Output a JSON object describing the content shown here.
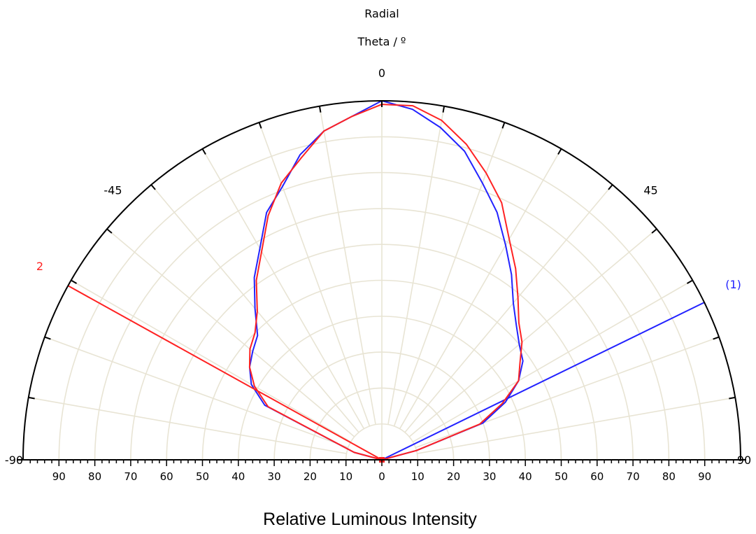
{
  "chart_data": {
    "type": "polar-line",
    "title": "Radial",
    "subtitle": "Theta / º",
    "xlabel": "Relative Luminous Intensity",
    "theta_range": [
      -90,
      90
    ],
    "r_range": [
      0,
      100
    ],
    "theta_ticks": [
      -90,
      -45,
      0,
      45,
      90
    ],
    "theta_tick_labels": [
      "-90",
      "-45",
      "0",
      "45",
      "90"
    ],
    "r_tick_labels": [
      "90",
      "80",
      "70",
      "60",
      "50",
      "40",
      "30",
      "20",
      "10",
      "0",
      "10",
      "20",
      "30",
      "40",
      "50",
      "60",
      "70",
      "80",
      "90"
    ],
    "grid": true,
    "grid_color": "#e8e4d4",
    "series": [
      {
        "name": "(1)",
        "color": "#2222ff",
        "theta": [
          -90,
          -75,
          -65,
          -60,
          -55,
          -50,
          -45,
          -40,
          -35,
          -30,
          -25,
          -20,
          -15,
          -10,
          -5,
          0,
          5,
          10,
          15,
          20,
          25,
          30,
          35,
          40,
          45,
          50,
          55,
          60,
          65,
          70,
          75,
          80,
          85,
          90
        ],
        "r": [
          0,
          8,
          36,
          42,
          45,
          47,
          49,
          55,
          62,
          68,
          76,
          81,
          88,
          93,
          96,
          100,
          98,
          94,
          89,
          82,
          76,
          69,
          63,
          57,
          53,
          50,
          48,
          44,
          38,
          30,
          10,
          0,
          0,
          0
        ],
        "marker_theta": 64,
        "marker_label": "(1)"
      },
      {
        "name": "2",
        "color": "#ff2222",
        "theta": [
          -90,
          -75,
          -65,
          -60,
          -55,
          -50,
          -45,
          -40,
          -35,
          -30,
          -25,
          -20,
          -15,
          -10,
          -5,
          0,
          5,
          10,
          15,
          20,
          25,
          30,
          35,
          40,
          45,
          50,
          55,
          60,
          65,
          70,
          75,
          80,
          85,
          90
        ],
        "r": [
          0,
          8,
          35,
          41,
          45,
          48,
          50,
          54,
          61,
          67,
          75,
          82,
          87,
          93,
          96,
          99,
          99,
          96,
          91,
          85,
          79,
          71,
          65,
          59,
          54,
          51,
          47,
          44,
          37,
          29,
          10,
          0,
          0,
          0
        ],
        "marker_theta": -61,
        "marker_label": "2"
      }
    ]
  }
}
